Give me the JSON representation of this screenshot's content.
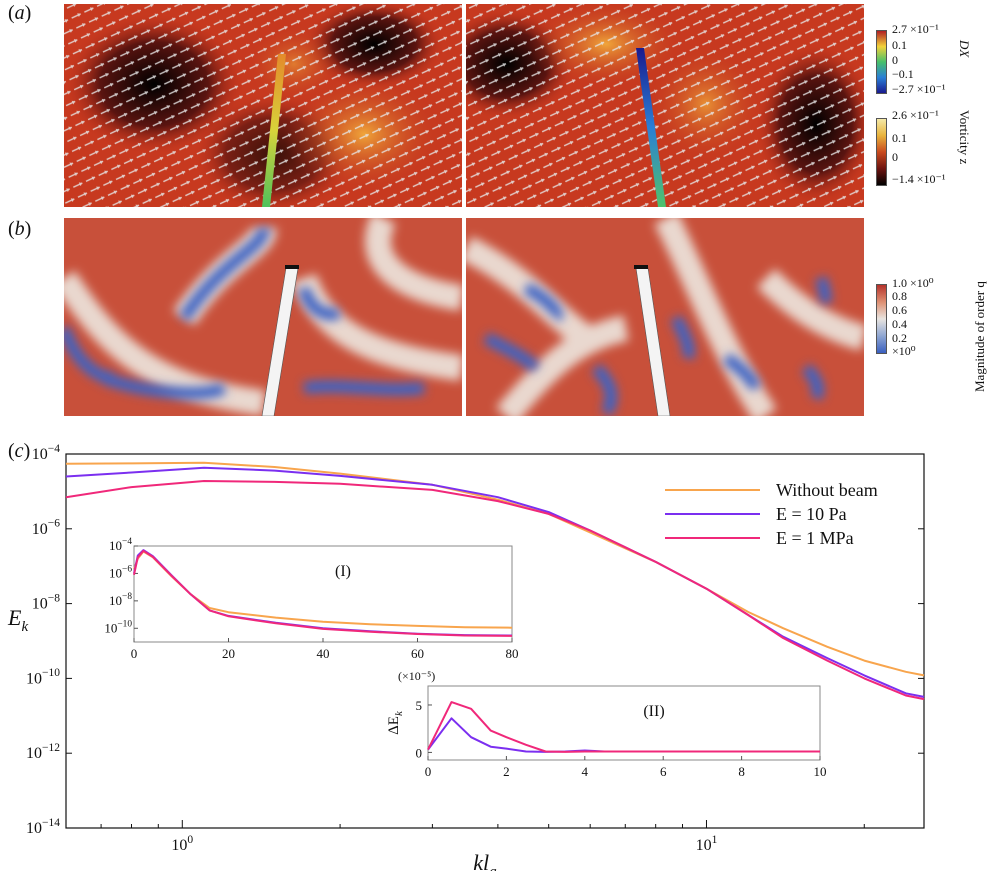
{
  "panel_labels": {
    "a": "a",
    "b": "b",
    "c": "c"
  },
  "colorbars": {
    "dx": {
      "title": "DX",
      "ticks": [
        "2.7 ×10⁻¹",
        "0.1",
        "0",
        "−0.1",
        "−2.7 ×10⁻¹"
      ],
      "colors": [
        "#b11f24",
        "#f2d23a",
        "#47c06b",
        "#2a7fd6",
        "#1a1a8e"
      ]
    },
    "vorticity": {
      "title": "Vorticity z",
      "ticks": [
        "2.6 ×10⁻¹",
        "0.1",
        "0",
        "−1.4 ×10⁻¹"
      ],
      "colors": [
        "#f4e9a8",
        "#e8b33c",
        "#c94a1e",
        "#6e1410",
        "#000000"
      ]
    },
    "order": {
      "title": "Magnitude of order q",
      "ticks": [
        "1.0 ×10⁰",
        "0.8",
        "0.6",
        "0.4",
        "0.2",
        "×10⁰"
      ],
      "colors": [
        "#b5322b",
        "#de8f72",
        "#e8e4e0",
        "#8fa6d2",
        "#3a5fbf"
      ]
    }
  },
  "chart_data": [
    {
      "type": "line",
      "xscale": "log",
      "yscale": "log",
      "xlabel": "kl_a",
      "ylabel": "E_k",
      "xlim": [
        0.6,
        26
      ],
      "ylim": [
        1e-14,
        0.0001
      ],
      "x_ticks": [
        {
          "label": "10",
          "exp": "0",
          "value": 1
        },
        {
          "label": "10",
          "exp": "1",
          "value": 10
        }
      ],
      "y_ticks": [
        {
          "label": "10",
          "exp": "−4",
          "value": 0.0001
        },
        {
          "label": "10",
          "exp": "−6",
          "value": 1e-06
        },
        {
          "label": "10",
          "exp": "−8",
          "value": 1e-08
        },
        {
          "label": "10",
          "exp": "−10",
          "value": 1e-10
        },
        {
          "label": "10",
          "exp": "−12",
          "value": 1e-12
        },
        {
          "label": "10",
          "exp": "−14",
          "value": 1e-14
        }
      ],
      "legend": "top-right",
      "grid": false,
      "series": [
        {
          "name": "Without beam",
          "color": "#f8a54d",
          "points": [
            [
              0.6,
              5.5e-05
            ],
            [
              0.8,
              5.6e-05
            ],
            [
              1.1,
              5.8e-05
            ],
            [
              1.5,
              4.5e-05
            ],
            [
              2,
              3e-05
            ],
            [
              3,
              1.5e-05
            ],
            [
              4,
              6e-06
            ],
            [
              5,
              2.5e-06
            ],
            [
              6,
              8e-07
            ],
            [
              7,
              3e-07
            ],
            [
              8,
              1.3e-07
            ],
            [
              10,
              2.5e-08
            ],
            [
              12,
              6e-09
            ],
            [
              14,
              2.2e-09
            ],
            [
              17,
              7e-10
            ],
            [
              20,
              3e-10
            ],
            [
              24,
              1.5e-10
            ],
            [
              26,
              1.2e-10
            ]
          ]
        },
        {
          "name": "E = 10 Pa",
          "color": "#7b2ff0",
          "points": [
            [
              0.6,
              2.5e-05
            ],
            [
              0.8,
              3.2e-05
            ],
            [
              1.1,
              4.3e-05
            ],
            [
              1.5,
              3.6e-05
            ],
            [
              2,
              2.6e-05
            ],
            [
              3,
              1.5e-05
            ],
            [
              4,
              7e-06
            ],
            [
              5,
              2.8e-06
            ],
            [
              6,
              9e-07
            ],
            [
              7,
              3.2e-07
            ],
            [
              8,
              1.3e-07
            ],
            [
              10,
              2.5e-08
            ],
            [
              12,
              5e-09
            ],
            [
              14,
              1.3e-09
            ],
            [
              17,
              3.5e-10
            ],
            [
              20,
              1.2e-10
            ],
            [
              24,
              4e-11
            ],
            [
              26,
              3.2e-11
            ]
          ]
        },
        {
          "name": "E = 1 MPa",
          "color": "#f0287a",
          "points": [
            [
              0.6,
              7e-06
            ],
            [
              0.8,
              1.3e-05
            ],
            [
              1.1,
              1.9e-05
            ],
            [
              1.5,
              1.8e-05
            ],
            [
              2,
              1.6e-05
            ],
            [
              3,
              1.1e-05
            ],
            [
              4,
              5.5e-06
            ],
            [
              5,
              2.5e-06
            ],
            [
              6,
              9e-07
            ],
            [
              7,
              3.2e-07
            ],
            [
              8,
              1.3e-07
            ],
            [
              10,
              2.5e-08
            ],
            [
              12,
              5e-09
            ],
            [
              14,
              1.2e-09
            ],
            [
              17,
              3e-10
            ],
            [
              20,
              1e-10
            ],
            [
              24,
              3.5e-11
            ],
            [
              26,
              2.8e-11
            ]
          ]
        }
      ]
    },
    {
      "type": "line",
      "title": "(I)",
      "xscale": "linear",
      "yscale": "log",
      "xlim": [
        0,
        80
      ],
      "ylim": [
        1e-11,
        0.0001
      ],
      "x_ticks": [
        0,
        20,
        40,
        60,
        80
      ],
      "y_ticks": [
        {
          "label": "10",
          "exp": "−4",
          "value": 0.0001
        },
        {
          "label": "10",
          "exp": "−6",
          "value": 1e-06
        },
        {
          "label": "10",
          "exp": "−8",
          "value": 1e-08
        },
        {
          "label": "10",
          "exp": "−10",
          "value": 1e-10
        }
      ],
      "series": [
        {
          "name": "Without beam",
          "color": "#f8a54d",
          "points": [
            [
              0,
              2e-06
            ],
            [
              0.8,
              1.2e-05
            ],
            [
              2,
              4e-05
            ],
            [
              4,
              1.5e-05
            ],
            [
              8,
              6e-07
            ],
            [
              12,
              3e-08
            ],
            [
              16,
              3e-09
            ],
            [
              20,
              1.5e-09
            ],
            [
              30,
              6e-10
            ],
            [
              40,
              3e-10
            ],
            [
              50,
              2e-10
            ],
            [
              60,
              1.5e-10
            ],
            [
              70,
              1.2e-10
            ],
            [
              80,
              1.1e-10
            ]
          ]
        },
        {
          "name": "E = 10 Pa",
          "color": "#7b2ff0",
          "points": [
            [
              0,
              1e-06
            ],
            [
              0.8,
              2e-05
            ],
            [
              2,
              5e-05
            ],
            [
              4,
              1.8e-05
            ],
            [
              8,
              7e-07
            ],
            [
              12,
              3e-08
            ],
            [
              16,
              2e-09
            ],
            [
              20,
              8e-10
            ],
            [
              30,
              2.5e-10
            ],
            [
              40,
              1e-10
            ],
            [
              50,
              6e-11
            ],
            [
              60,
              4e-11
            ],
            [
              70,
              3.2e-11
            ],
            [
              80,
              3e-11
            ]
          ]
        },
        {
          "name": "E = 1 MPa",
          "color": "#f0287a",
          "points": [
            [
              0,
              8e-07
            ],
            [
              0.8,
              1.5e-05
            ],
            [
              2,
              4.5e-05
            ],
            [
              4,
              1.6e-05
            ],
            [
              8,
              6.5e-07
            ],
            [
              12,
              3e-08
            ],
            [
              16,
              2e-09
            ],
            [
              20,
              7.5e-10
            ],
            [
              30,
              2.3e-10
            ],
            [
              40,
              9e-11
            ],
            [
              50,
              5.5e-11
            ],
            [
              60,
              3.8e-11
            ],
            [
              70,
              3e-11
            ],
            [
              80,
              2.8e-11
            ]
          ]
        }
      ]
    },
    {
      "type": "line",
      "title": "(II)",
      "xscale": "linear",
      "yscale": "linear",
      "ylabel": "ΔE_k",
      "yunit": "(×10⁻⁵)",
      "xlim": [
        0,
        10
      ],
      "ylim": [
        -0.8,
        7
      ],
      "x_ticks": [
        0,
        2,
        4,
        6,
        8,
        10
      ],
      "y_ticks": [
        0,
        5
      ],
      "series": [
        {
          "name": "E = 10 Pa",
          "color": "#7b2ff0",
          "points": [
            [
              0,
              0.3
            ],
            [
              0.6,
              3.6
            ],
            [
              1.1,
              1.6
            ],
            [
              1.6,
              0.6
            ],
            [
              2,
              0.4
            ],
            [
              2.5,
              0.1
            ],
            [
              3,
              0.05
            ],
            [
              3.5,
              0.1
            ],
            [
              4,
              0.2
            ],
            [
              4.5,
              0.1
            ],
            [
              5,
              0.1
            ],
            [
              6,
              0.1
            ],
            [
              7,
              0.1
            ],
            [
              8,
              0.1
            ],
            [
              9,
              0.1
            ],
            [
              10,
              0.1
            ]
          ]
        },
        {
          "name": "E = 1 MPa",
          "color": "#f0287a",
          "points": [
            [
              0,
              0.3
            ],
            [
              0.6,
              5.3
            ],
            [
              1.1,
              4.6
            ],
            [
              1.6,
              2.3
            ],
            [
              2,
              1.6
            ],
            [
              2.5,
              0.8
            ],
            [
              3,
              0.1
            ],
            [
              3.5,
              0.05
            ],
            [
              4,
              0.1
            ],
            [
              4.5,
              0.1
            ],
            [
              5,
              0.1
            ],
            [
              6,
              0.1
            ],
            [
              7,
              0.1
            ],
            [
              8,
              0.1
            ],
            [
              9,
              0.1
            ],
            [
              10,
              0.1
            ]
          ]
        }
      ]
    }
  ]
}
